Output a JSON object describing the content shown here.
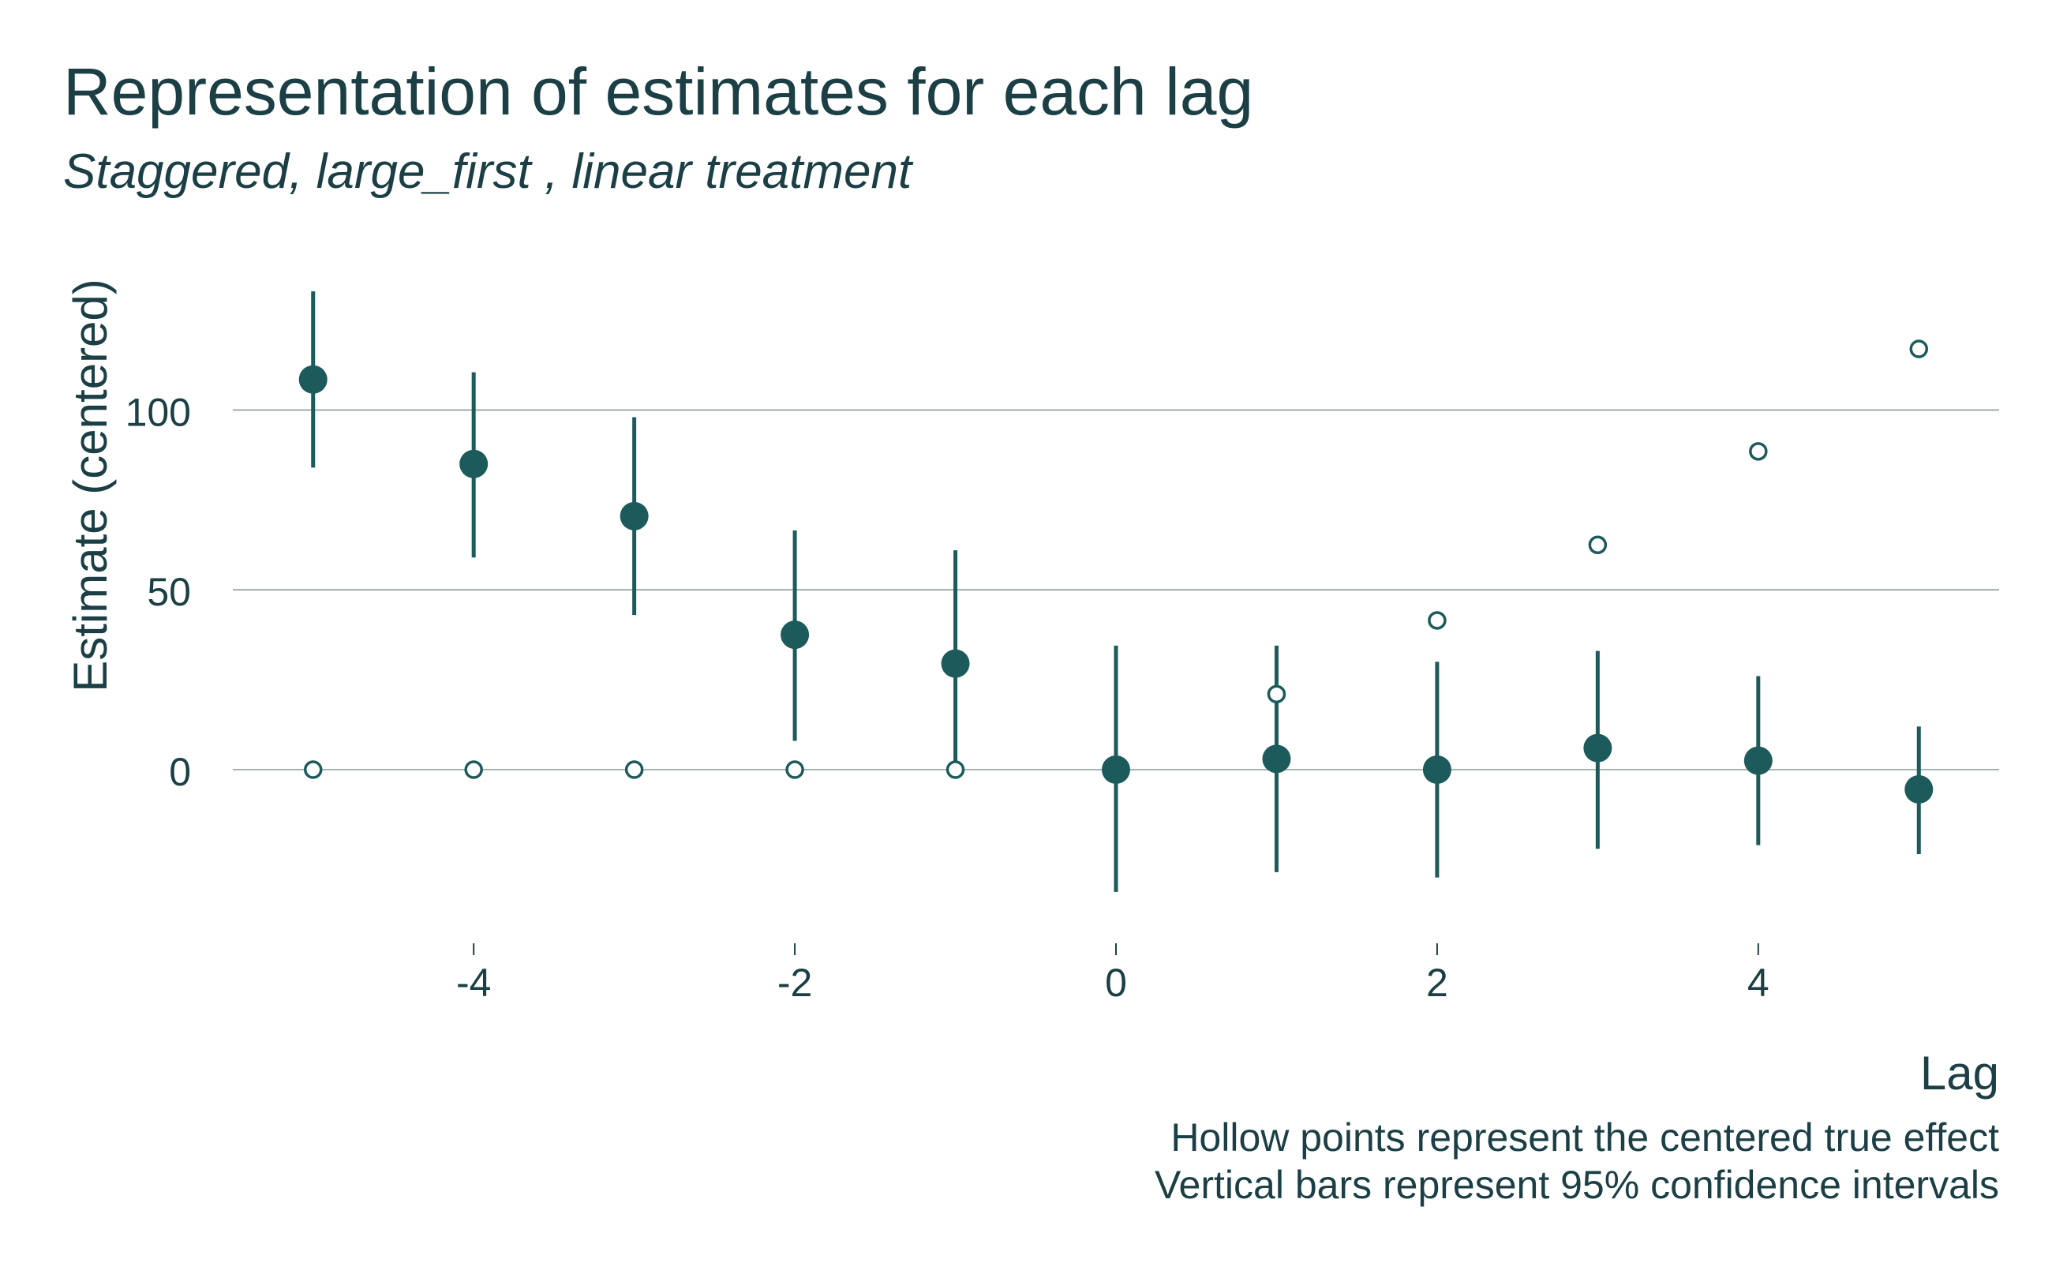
{
  "chart_data": {
    "type": "scatter",
    "title": "Representation of estimates for each lag",
    "subtitle": "Staggered, large_first , linear treatment",
    "xlabel": "Lag",
    "ylabel": "Estimate (centered)",
    "x_ticks": [
      -4,
      -2,
      0,
      2,
      4
    ],
    "y_ticks": [
      0,
      50,
      100
    ],
    "xlim": [
      -5.5,
      5.5
    ],
    "ylim": [
      -45,
      135
    ],
    "grid": "horizontal",
    "color": "#1c5a5c",
    "caption": [
      "Hollow points represent the centered true effect",
      "Vertical bars represent 95% confidence intervals"
    ],
    "series": [
      {
        "name": "estimate",
        "x": [
          -5,
          -4,
          -3,
          -2,
          -1,
          0,
          1,
          2,
          3,
          4,
          5
        ],
        "values": [
          108.5,
          85,
          70.5,
          37.5,
          29.5,
          0,
          3,
          0,
          6,
          2.5,
          -5.5
        ],
        "ci_low": [
          84,
          59,
          43,
          8,
          0,
          -34,
          -28.5,
          -30,
          -22,
          -21,
          -23.5
        ],
        "ci_high": [
          133,
          110.5,
          98,
          66.5,
          61,
          34.5,
          34.5,
          30,
          33,
          26,
          12
        ]
      },
      {
        "name": "true effect",
        "x": [
          -5,
          -4,
          -3,
          -2,
          -1,
          0,
          1,
          2,
          3,
          4,
          5
        ],
        "values": [
          0,
          0,
          0,
          0,
          0,
          0,
          21,
          41.5,
          62.5,
          88.5,
          117
        ]
      }
    ]
  }
}
